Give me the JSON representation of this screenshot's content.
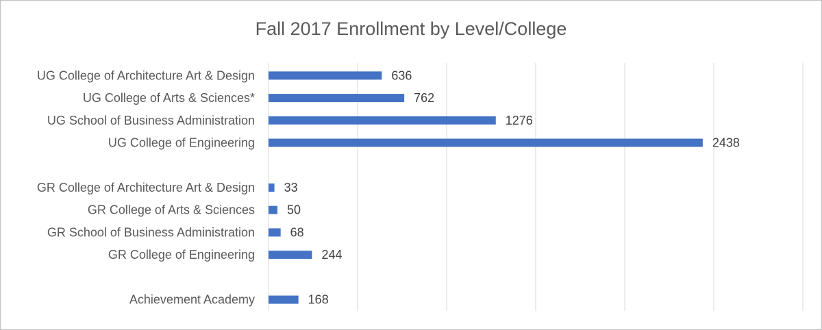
{
  "chart_data": {
    "type": "bar",
    "orientation": "horizontal",
    "title": "Fall 2017 Enrollment by Level/College",
    "xlabel": "",
    "ylabel": "",
    "xlim": [
      0,
      3000
    ],
    "grid": "vertical",
    "legend": "none",
    "bar_color": "#4472c4",
    "categories": [
      "UG College of Architecture Art & Design",
      "UG College of Arts & Sciences*",
      "UG School of Business Administration",
      "UG College of Engineering",
      "",
      "GR College of Architecture Art & Design",
      "GR College of Arts & Sciences",
      "GR School of Business Administration",
      "GR College of Engineering",
      "",
      "Achievement Academy"
    ],
    "values": [
      636,
      762,
      1276,
      2438,
      null,
      33,
      50,
      68,
      244,
      null,
      168
    ]
  }
}
